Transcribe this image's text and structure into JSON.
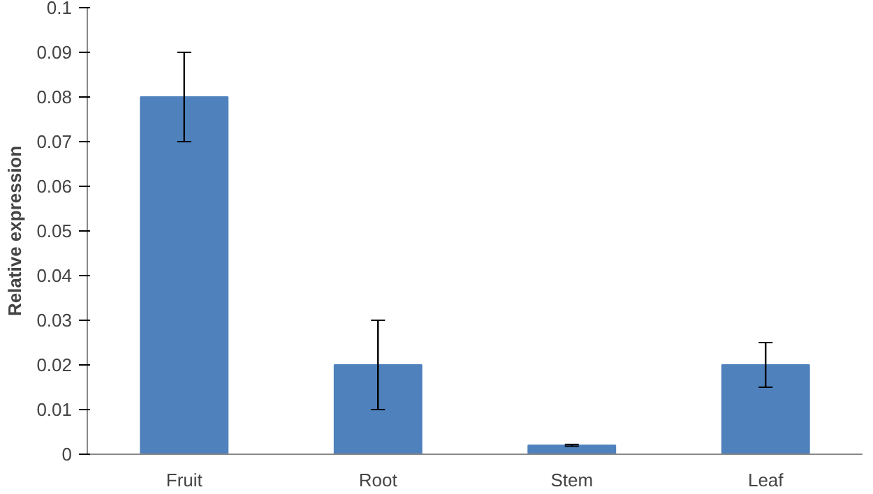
{
  "chart_data": {
    "type": "bar",
    "ylabel": "Relative expression",
    "categories": [
      "Fruit",
      "Root",
      "Stem",
      "Leaf"
    ],
    "values": [
      0.08,
      0.02,
      0.002,
      0.02
    ],
    "errors": [
      0.01,
      0.01,
      0.0002,
      0.005
    ],
    "color": "#4f81bd",
    "ylim": [
      0,
      0.1
    ],
    "yticks": [
      0,
      0.01,
      0.02,
      0.03,
      0.04,
      0.05,
      0.06,
      0.07,
      0.08,
      0.09,
      0.1
    ],
    "grid": false
  }
}
